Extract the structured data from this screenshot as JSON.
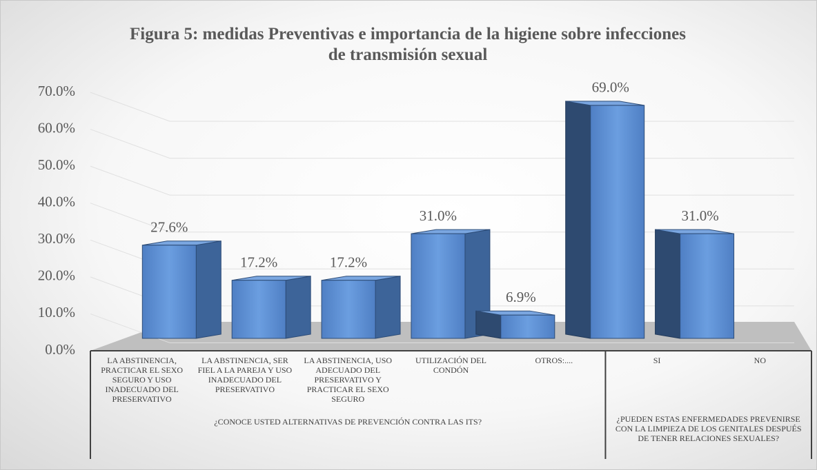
{
  "chart_data": {
    "type": "bar3d",
    "title": "Figura 5: medidas  Preventivas  e importancia  de la higiene sobre infecciones de transmisión  sexual",
    "ylim": [
      0,
      70
    ],
    "yticks": [
      {
        "value": 0,
        "label": "0.0%"
      },
      {
        "value": 10,
        "label": "10.0%"
      },
      {
        "value": 20,
        "label": "20.0%"
      },
      {
        "value": 30,
        "label": "30.0%"
      },
      {
        "value": 40,
        "label": "40.0%"
      },
      {
        "value": 50,
        "label": "50.0%"
      },
      {
        "value": 60,
        "label": "60.0%"
      },
      {
        "value": 70,
        "label": "70.0%"
      }
    ],
    "grid": true,
    "color": "#5b8bd0",
    "groups": [
      {
        "label": "¿CONOCE USTED ALTERNATIVAS DE PREVENCIÓN CONTRA LAS ITS?",
        "categories": [
          "LA ABSTINENCIA, PRACTICAR EL SEXO SEGURO Y USO INADECUADO DEL PRESERVATIVO",
          "LA ABSTINENCIA, SER FIEL A LA PAREJA Y USO INADECUADO DEL PRESERVATIVO",
          "LA ABSTINENCIA, USO ADECUADO DEL PRESERVATIVO Y PRACTICAR EL SEXO SEGURO",
          "UTILIZACIÓN DEL CONDÓN",
          "OTROS:...."
        ],
        "values": [
          27.6,
          17.2,
          17.2,
          31.0,
          6.9
        ],
        "value_labels": [
          "27.6%",
          "17.2%",
          "17.2%",
          "31.0%",
          "6.9%"
        ]
      },
      {
        "label": "¿PUEDEN ESTAS ENFERMEDADES PREVENIRSE CON LA LIMPIEZA DE LOS GENITALES DESPUÉS DE TENER RELACIONES SEXUALES?",
        "categories": [
          "SI",
          "NO"
        ],
        "values": [
          69.0,
          31.0
        ],
        "value_labels": [
          "69.0%",
          "31.0%"
        ]
      }
    ]
  }
}
